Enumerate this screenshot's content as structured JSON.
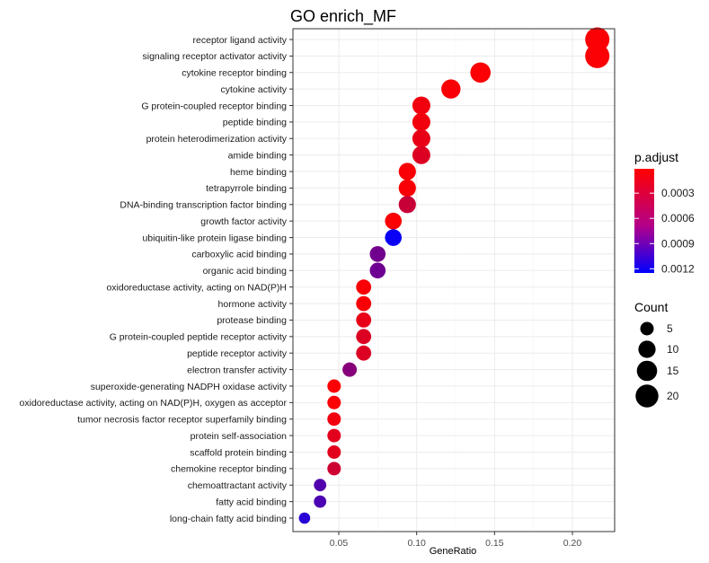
{
  "chart_data": {
    "type": "scatter",
    "title": "GO enrich_MF",
    "xlabel": "GeneRatio",
    "ylabel": "",
    "xlim": [
      0.022,
      0.226
    ],
    "xticks": [
      0.05,
      0.1,
      0.15,
      0.2
    ],
    "xtick_labels": [
      "0.05",
      "0.10",
      "0.15",
      "0.20"
    ],
    "grid": true,
    "categories": [
      "receptor ligand activity",
      "signaling receptor activator activity",
      "cytokine receptor binding",
      "cytokine activity",
      "G protein-coupled receptor binding",
      "peptide binding",
      "protein heterodimerization activity",
      "amide binding",
      "heme binding",
      "tetrapyrrole binding",
      "DNA-binding transcription factor binding",
      "growth factor activity",
      "ubiquitin-like protein ligase binding",
      "carboxylic acid binding",
      "organic acid binding",
      "oxidoreductase activity, acting on NAD(P)H",
      "hormone activity",
      "protease binding",
      "G protein-coupled peptide receptor activity",
      "peptide receptor activity",
      "electron transfer activity",
      "superoxide-generating NADPH oxidase activity",
      "oxidoreductase activity, acting on NAD(P)H, oxygen as acceptor",
      "tumor necrosis factor receptor superfamily binding",
      "protein self-association",
      "scaffold protein binding",
      "chemokine receptor binding",
      "chemoattractant activity",
      "fatty acid binding",
      "long-chain fatty acid binding"
    ],
    "gene_ratio": [
      0.216,
      0.216,
      0.141,
      0.122,
      0.103,
      0.103,
      0.103,
      0.103,
      0.094,
      0.094,
      0.094,
      0.085,
      0.085,
      0.075,
      0.075,
      0.066,
      0.066,
      0.066,
      0.066,
      0.066,
      0.057,
      0.047,
      0.047,
      0.047,
      0.047,
      0.047,
      0.047,
      0.038,
      0.038,
      0.028
    ],
    "count": [
      23,
      23,
      15,
      13,
      11,
      11,
      11,
      11,
      10,
      10,
      10,
      9,
      9,
      8,
      8,
      7,
      7,
      7,
      7,
      7,
      6,
      5,
      5,
      5,
      5,
      5,
      5,
      4,
      4,
      3
    ],
    "p_adjust": [
      3e-05,
      3e-05,
      3e-05,
      4e-05,
      8e-05,
      8e-05,
      0.00012,
      0.00018,
      4e-05,
      4e-05,
      0.00028,
      3e-05,
      0.0012,
      0.0007,
      0.00072,
      4e-05,
      4e-05,
      0.00012,
      0.00018,
      0.00018,
      0.0006,
      3e-05,
      3e-05,
      8e-05,
      0.00015,
      0.00015,
      0.00025,
      0.00085,
      0.00088,
      0.00105
    ],
    "color_legend": {
      "title": "p.adjust",
      "range": [
        1e-05,
        0.00125
      ],
      "ticks": [
        0.0003,
        0.0006,
        0.0009,
        0.0012
      ],
      "tick_labels": [
        "0.0003",
        "0.0006",
        "0.0009",
        "0.0012"
      ],
      "low_color": "#ff0000",
      "high_color": "#0000ff"
    },
    "size_legend": {
      "title": "Count",
      "values": [
        5,
        10,
        15,
        20
      ],
      "labels": [
        "5",
        "10",
        "15",
        "20"
      ],
      "color": "#000000"
    },
    "legend_position": "right",
    "panel_background": "#ffffff",
    "grid_color": "#ebebeb",
    "border_color": "#333333"
  }
}
